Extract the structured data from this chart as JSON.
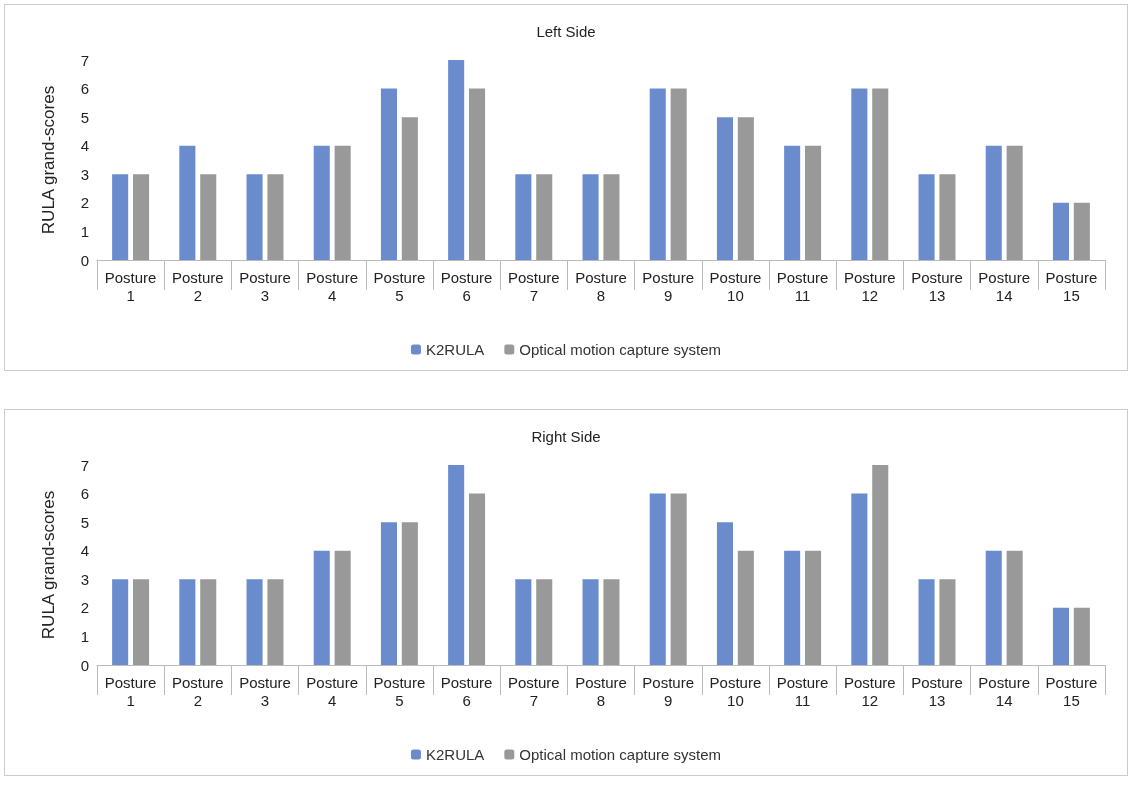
{
  "chart_data": [
    {
      "type": "bar",
      "title": "Left Side",
      "ylabel": "RULA grand-scores",
      "categories": [
        "Posture 1",
        "Posture 2",
        "Posture 3",
        "Posture 4",
        "Posture 5",
        "Posture 6",
        "Posture 7",
        "Posture 8",
        "Posture 9",
        "Posture 10",
        "Posture 11",
        "Posture 12",
        "Posture 13",
        "Posture 14",
        "Posture 15"
      ],
      "series": [
        {
          "name": "K2RULA",
          "color": "#6a8ccd",
          "values": [
            3,
            4,
            3,
            4,
            6,
            7,
            3,
            3,
            6,
            5,
            4,
            6,
            3,
            4,
            2
          ]
        },
        {
          "name": "Optical motion capture system",
          "color": "#999999",
          "values": [
            3,
            3,
            3,
            4,
            5,
            6,
            3,
            3,
            6,
            5,
            4,
            6,
            3,
            4,
            2
          ]
        }
      ],
      "ylim": [
        0,
        7
      ],
      "yticks": [
        0,
        1,
        2,
        3,
        4,
        5,
        6,
        7
      ],
      "grid": false,
      "legend": "bottom"
    },
    {
      "type": "bar",
      "title": "Right Side",
      "ylabel": "RULA grand-scores",
      "categories": [
        "Posture 1",
        "Posture 2",
        "Posture 3",
        "Posture 4",
        "Posture 5",
        "Posture 6",
        "Posture 7",
        "Posture 8",
        "Posture 9",
        "Posture 10",
        "Posture 11",
        "Posture 12",
        "Posture 13",
        "Posture 14",
        "Posture 15"
      ],
      "series": [
        {
          "name": "K2RULA",
          "color": "#6a8ccd",
          "values": [
            3,
            3,
            3,
            4,
            5,
            7,
            3,
            3,
            6,
            5,
            4,
            6,
            3,
            4,
            2
          ]
        },
        {
          "name": "Optical motion capture system",
          "color": "#999999",
          "values": [
            3,
            3,
            3,
            4,
            5,
            6,
            3,
            3,
            6,
            4,
            4,
            7,
            3,
            4,
            2
          ]
        }
      ],
      "ylim": [
        0,
        7
      ],
      "yticks": [
        0,
        1,
        2,
        3,
        4,
        5,
        6,
        7
      ],
      "grid": false,
      "legend": "bottom"
    }
  ]
}
